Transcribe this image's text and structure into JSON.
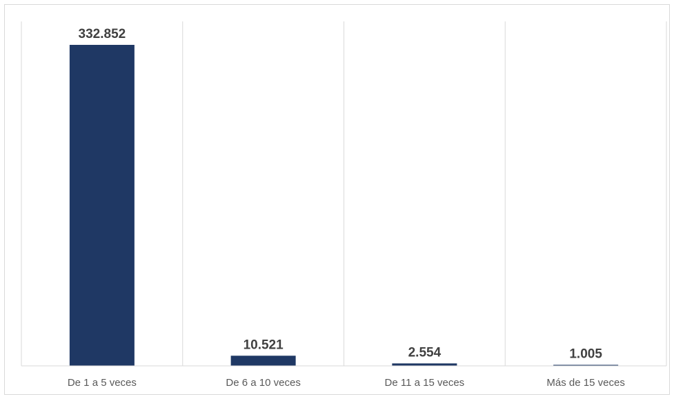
{
  "chart_data": {
    "type": "bar",
    "title": "",
    "xlabel": "",
    "ylabel": "",
    "categories": [
      "De 1 a 5 veces",
      "De 6 a 10 veces",
      "De 11 a 15 veces",
      "Más de 15 veces"
    ],
    "values": [
      332852,
      10521,
      2554,
      1005
    ],
    "value_labels": [
      "332.852",
      "10.521",
      "2.554",
      "1.005"
    ],
    "ylim": [
      0,
      340000
    ],
    "grid": "vertical category separators",
    "legend": "none",
    "bar_color": "#1f3864"
  }
}
